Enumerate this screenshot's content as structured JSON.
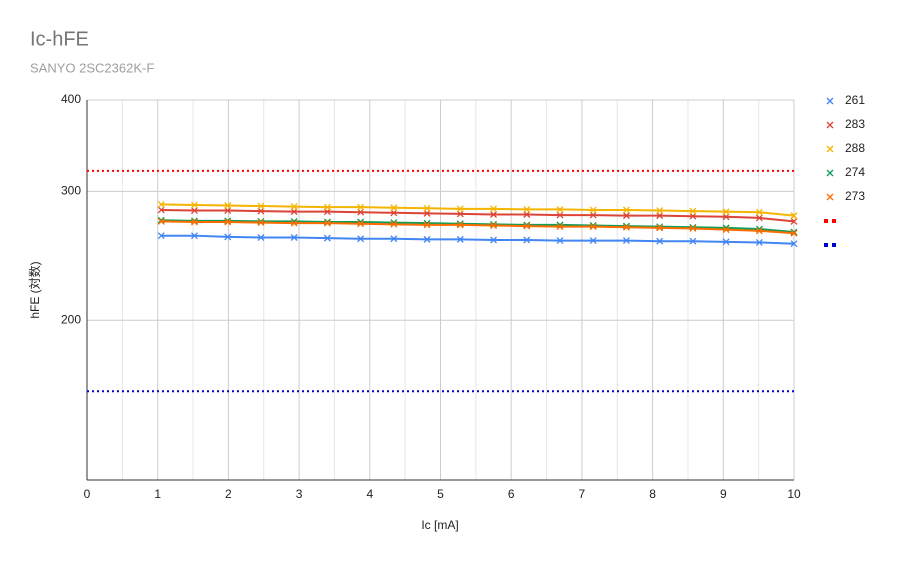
{
  "chart_data": {
    "type": "line",
    "title": "Ic-hFE",
    "subtitle": "SANYO 2SC2362K-F",
    "x_label": "Ic [mA]",
    "y_label": "hFE (対数)",
    "x": [
      1.05,
      1.52,
      1.99,
      2.46,
      2.93,
      3.4,
      3.87,
      4.34,
      4.81,
      5.28,
      5.75,
      6.22,
      6.69,
      7.16,
      7.63,
      8.1,
      8.57,
      9.04,
      9.51,
      10
    ],
    "series": [
      {
        "name": "261",
        "color": "#4285f4",
        "values": [
          261,
          261,
          260,
          259.5,
          259.5,
          259,
          258.5,
          258.5,
          258,
          258,
          257.5,
          257.5,
          257,
          257,
          257,
          256.5,
          256.5,
          256,
          255.5,
          254.5
        ]
      },
      {
        "name": "283",
        "color": "#db4437",
        "values": [
          283,
          282.5,
          282.5,
          282,
          281.5,
          281.5,
          281,
          280.5,
          280,
          279.5,
          279,
          279,
          278.5,
          278.5,
          278,
          278,
          277.5,
          277,
          276,
          273
        ]
      },
      {
        "name": "288",
        "color": "#f4b400",
        "values": [
          288,
          287.5,
          287,
          286.5,
          286,
          285.5,
          285.5,
          285,
          284.5,
          284,
          284,
          283.5,
          283.5,
          283,
          283,
          282.5,
          282,
          281.5,
          281,
          278
        ]
      },
      {
        "name": "274",
        "color": "#0f9d58",
        "values": [
          274,
          273.5,
          273.5,
          273,
          273,
          272.5,
          272.5,
          272,
          271.5,
          271,
          270.5,
          270,
          270,
          269.5,
          269,
          268.5,
          268,
          267.5,
          266.5,
          264
        ]
      },
      {
        "name": "273",
        "color": "#ff6d01",
        "values": [
          273,
          272.5,
          272.5,
          272,
          271.5,
          271.5,
          271,
          270.5,
          270,
          270,
          269.5,
          269,
          268.5,
          268.5,
          268,
          267.5,
          267,
          266,
          265,
          263
        ]
      },
      {
        "color": "#ff0000",
        "x": [
          0,
          10
        ],
        "values": [
          320,
          320
        ],
        "dotted": true
      },
      {
        "color": "#0000cc",
        "x": [
          0,
          10
        ],
        "values": [
          160,
          160
        ],
        "dotted": true
      }
    ],
    "xlim": [
      0,
      10
    ],
    "xticks": [
      0,
      1,
      2,
      3,
      4,
      5,
      6,
      7,
      8,
      9,
      10
    ],
    "x_minor_ticks": [
      0.5,
      1.5,
      2.5,
      3.5,
      4.5,
      5.5,
      6.5,
      7.5,
      8.5,
      9.5
    ],
    "ylim": [
      121,
      400
    ],
    "yticks": [
      200,
      300,
      400
    ],
    "y_log": true,
    "grid": true,
    "legend": "right"
  }
}
